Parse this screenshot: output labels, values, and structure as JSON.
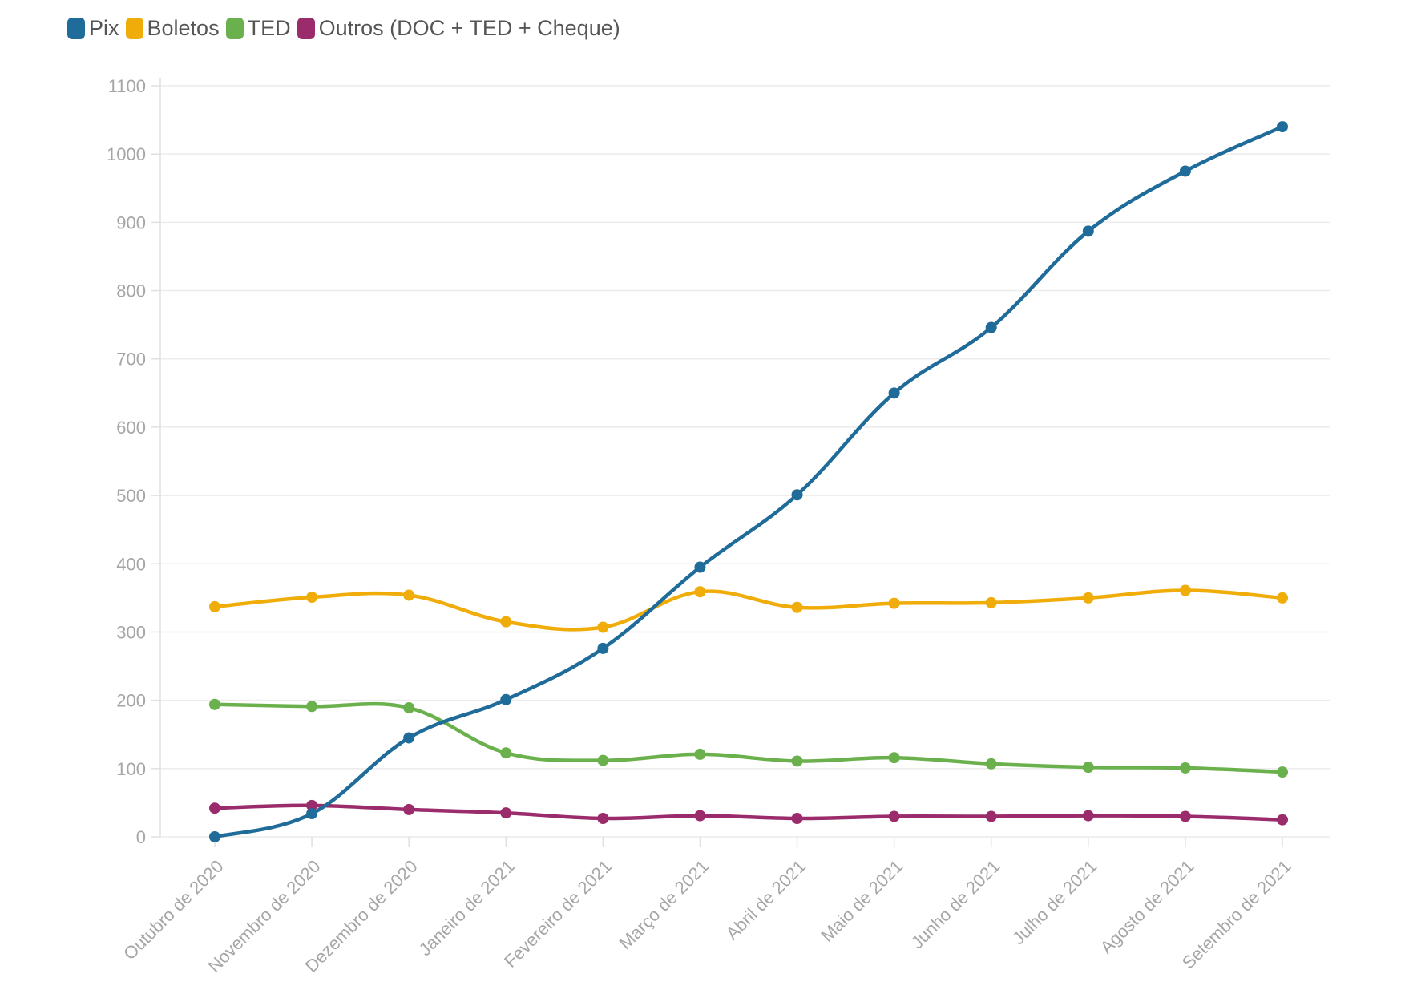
{
  "chart_data": {
    "type": "line",
    "categories": [
      "Outubro de 2020",
      "Novembro de 2020",
      "Dezembro de 2020",
      "Janeiro de 2021",
      "Fevereiro de 2021",
      "Março de 2021",
      "Abril de 2021",
      "Maio de 2021",
      "Junho de 2021",
      "Julho de 2021",
      "Agosto de 2021",
      "Setembro de 2021"
    ],
    "series": [
      {
        "name": "Pix",
        "color": "#1f6b9a",
        "values": [
          0,
          34,
          145,
          201,
          276,
          395,
          501,
          650,
          746,
          887,
          975,
          1040
        ]
      },
      {
        "name": "Boletos",
        "color": "#f0ad0a",
        "values": [
          337,
          351,
          354,
          315,
          307,
          359,
          336,
          342,
          343,
          350,
          361,
          350
        ]
      },
      {
        "name": "TED",
        "color": "#6ab04c",
        "values": [
          194,
          191,
          189,
          123,
          112,
          121,
          111,
          116,
          107,
          102,
          101,
          95
        ]
      },
      {
        "name": "Outros (DOC + TED + Cheque)",
        "color": "#9b2c6b",
        "values": [
          42,
          46,
          40,
          35,
          27,
          31,
          27,
          30,
          30,
          31,
          30,
          25
        ]
      }
    ],
    "yticks": [
      0,
      100,
      200,
      300,
      400,
      500,
      600,
      700,
      800,
      900,
      1000,
      1100
    ],
    "ylim": [
      0,
      1100
    ],
    "grid": true,
    "legend_position": "top-left",
    "title": "",
    "xlabel": "",
    "ylabel": ""
  }
}
